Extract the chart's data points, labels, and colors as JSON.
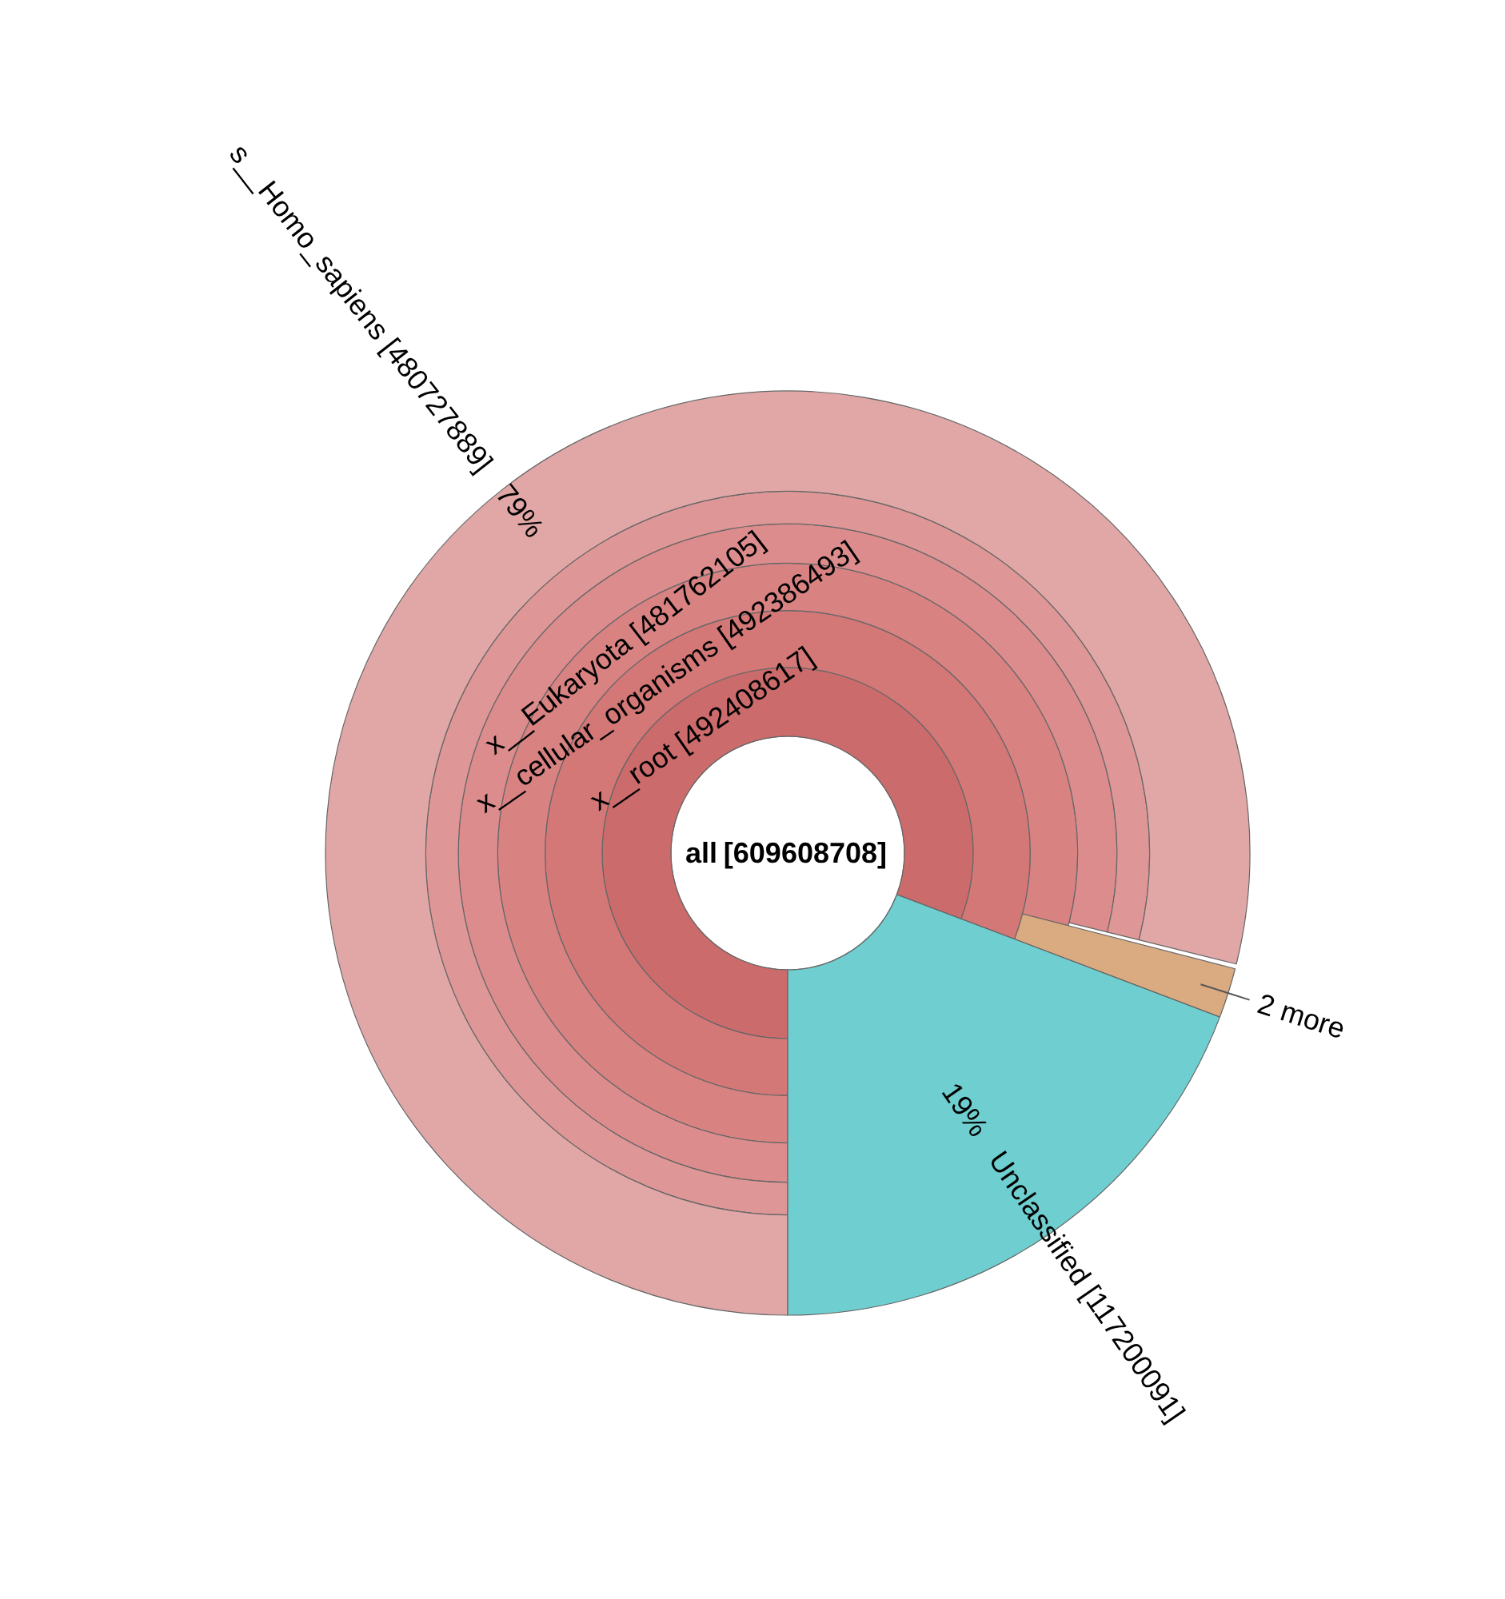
{
  "chart_data": {
    "type": "other",
    "categories": [
      "all",
      "x__root",
      "x__cellular_organisms",
      "x__Eukaryota",
      null,
      null,
      "s__Homo_sapiens",
      "2 more",
      "Unclassified"
    ],
    "series": [
      {
        "values": [
          609608708,
          null,
          null,
          null,
          null,
          null,
          null,
          null,
          null
        ],
        "colors": [
          "#ffffff",
          null,
          null,
          null,
          null,
          null,
          null,
          null,
          null
        ],
        "value_labels": [
          "[609608708]",
          null,
          null,
          null,
          null,
          null,
          null,
          null,
          null
        ]
      },
      {
        "values": [
          null,
          492408617,
          null,
          null,
          null,
          null,
          null,
          null,
          117200091
        ],
        "colors": [
          null,
          "#cc6b6b",
          null,
          null,
          null,
          null,
          null,
          null,
          "#6fcecf"
        ],
        "value_labels": [
          null,
          "[492408617]",
          null,
          null,
          null,
          null,
          null,
          null,
          "[117200091]"
        ]
      },
      {
        "values": [
          null,
          null,
          492386493,
          null,
          null,
          null,
          null,
          null,
          null
        ],
        "colors": [
          null,
          null,
          "#d37777",
          null,
          null,
          null,
          null,
          null,
          null
        ],
        "value_labels": [
          null,
          null,
          "[492386493]",
          null,
          null,
          null,
          null,
          null,
          null
        ]
      },
      {
        "values": [
          null,
          null,
          null,
          481762105,
          null,
          null,
          null,
          null,
          null
        ],
        "colors": [
          null,
          null,
          null,
          "#d88282",
          null,
          null,
          null,
          "#daaa80",
          null
        ],
        "value_labels": [
          null,
          null,
          null,
          "[481762105]",
          null,
          null,
          null,
          null,
          null
        ]
      },
      {
        "values": [
          null,
          null,
          null,
          null,
          null,
          null,
          null,
          null,
          null
        ],
        "colors": [
          null,
          null,
          null,
          null,
          "#dc8c8c",
          null,
          null,
          null,
          null
        ]
      },
      {
        "values": [
          null,
          null,
          null,
          null,
          null,
          null,
          null,
          null,
          null
        ],
        "colors": [
          null,
          null,
          null,
          null,
          null,
          "#df9696",
          null,
          null,
          null
        ]
      },
      {
        "values": [
          null,
          null,
          null,
          null,
          null,
          null,
          480727889,
          null,
          null
        ],
        "colors": [
          null,
          null,
          null,
          null,
          null,
          null,
          "#e1a7a7",
          null,
          null
        ],
        "value_labels": [
          null,
          null,
          null,
          null,
          null,
          null,
          "[480727889]",
          null,
          null
        ]
      }
    ],
    "annotations": [
      {
        "text": "79%",
        "x": "s__Homo_sapiens"
      },
      {
        "text": "19%",
        "x": "Unclassified"
      }
    ]
  }
}
